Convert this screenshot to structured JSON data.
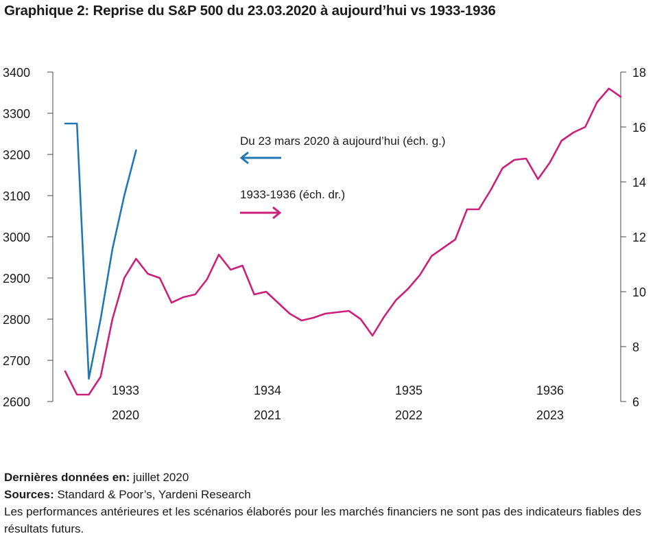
{
  "title": "Graphique 2: Reprise du S&P 500 du 23.03.2020 à aujourd’hui vs 1933-1936",
  "chart_data": {
    "type": "line",
    "left_axis": {
      "ticks": [
        2600,
        2700,
        2800,
        2900,
        3000,
        3100,
        3200,
        3300,
        3400
      ],
      "range": [
        2600,
        3400
      ]
    },
    "right_axis": {
      "ticks": [
        6,
        8,
        10,
        12,
        14,
        16,
        18
      ],
      "range": [
        6,
        18
      ]
    },
    "x_axis_top": [
      "1933",
      "1934",
      "1935",
      "1936"
    ],
    "x_axis_bottom": [
      "2020",
      "2021",
      "2022",
      "2023"
    ],
    "series": [
      {
        "name": "Du 23 mars 2020 à aujourd’hui (éch. g.)",
        "color": "#1f78b4",
        "axis": "left",
        "values": [
          3275,
          3275,
          2655,
          2800,
          2970,
          3100,
          3210
        ],
        "x": [
          0,
          1,
          2,
          3,
          4,
          5,
          6
        ]
      },
      {
        "name": "1933-1936 (éch. dr.)",
        "color": "#cc1f7a",
        "axis": "right",
        "values": [
          7.1,
          6.25,
          6.25,
          6.9,
          9.0,
          10.5,
          11.2,
          10.65,
          10.5,
          9.6,
          9.8,
          9.9,
          10.45,
          11.35,
          10.8,
          10.95,
          9.9,
          10.0,
          9.6,
          9.2,
          8.95,
          9.05,
          9.2,
          9.25,
          9.3,
          9.0,
          8.4,
          9.1,
          9.7,
          10.1,
          10.6,
          11.3,
          11.6,
          11.9,
          13.0,
          13.0,
          13.7,
          14.5,
          14.8,
          14.85,
          14.1,
          14.7,
          15.5,
          15.8,
          16.0,
          16.9,
          17.4,
          17.1
        ],
        "x": [
          0,
          1,
          2,
          3,
          4,
          5,
          6,
          7,
          8,
          9,
          10,
          11,
          12,
          13,
          14,
          15,
          16,
          17,
          18,
          19,
          20,
          21,
          22,
          23,
          24,
          25,
          26,
          27,
          28,
          29,
          30,
          31,
          32,
          33,
          34,
          35,
          36,
          37,
          38,
          39,
          40,
          41,
          42,
          43,
          44,
          45,
          46,
          47
        ]
      }
    ]
  },
  "footer": {
    "last_data_label": "Dernières données en:",
    "last_data_value": " juillet 2020",
    "sources_label": "Sources:",
    "sources_value": " Standard & Poor’s, Yardeni Research",
    "disclaimer": "Les performances antérieures et les scénarios élaborés pour les marchés financiers ne sont pas des indicateurs fiables des résultats futurs."
  }
}
